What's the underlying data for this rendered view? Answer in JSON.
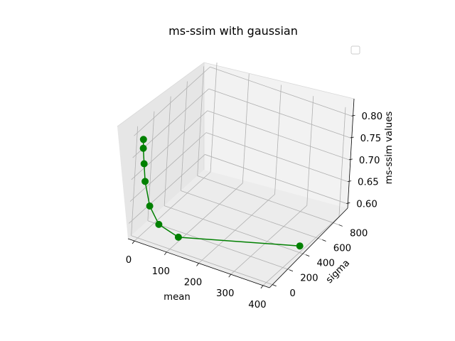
{
  "chart_data": {
    "type": "line",
    "projection": "3d",
    "title": "ms-ssim with gaussian",
    "xlabel": "mean",
    "ylabel": "sigma",
    "zlabel": "ms-ssim values",
    "x_ticks": [
      0,
      100,
      200,
      300,
      400
    ],
    "y_ticks": [
      0,
      200,
      400,
      600,
      800
    ],
    "z_ticks": [
      "0.60",
      "0.65",
      "0.70",
      "0.75",
      "0.80"
    ],
    "xlim": [
      -20,
      420
    ],
    "ylim": [
      -40,
      880
    ],
    "zlim": [
      0.565,
      0.815
    ],
    "grid": true,
    "legend": "top-right (empty)",
    "series": [
      {
        "color": "#008000",
        "marker": "circle",
        "points": [
          {
            "x": 0,
            "y": 0,
            "z": 0.79
          },
          {
            "x": 1,
            "y": 1,
            "z": 0.77
          },
          {
            "x": 5,
            "y": 5,
            "z": 0.735
          },
          {
            "x": 10,
            "y": 10,
            "z": 0.695
          },
          {
            "x": 25,
            "y": 25,
            "z": 0.64
          },
          {
            "x": 50,
            "y": 50,
            "z": 0.6
          },
          {
            "x": 100,
            "y": 100,
            "z": 0.575
          },
          {
            "x": 400,
            "y": 400,
            "z": 0.58
          }
        ]
      }
    ]
  }
}
